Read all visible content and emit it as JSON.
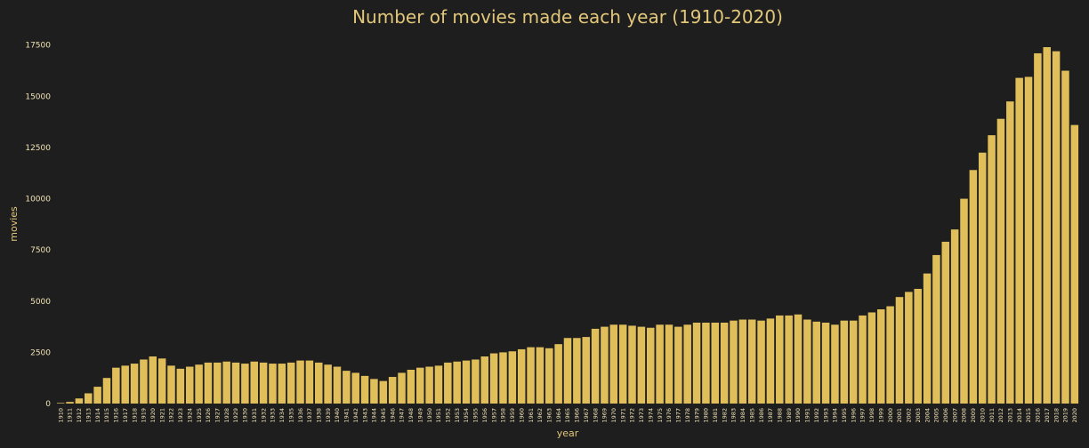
{
  "colors": {
    "background": "#1e1e1e",
    "bar": "#e0bf5b",
    "text": "#e2c77a",
    "tick_text": "#f0e2b4"
  },
  "chart_data": {
    "type": "bar",
    "title": "Number of movies made each year (1910-2020)",
    "xlabel": "year",
    "ylabel": "movies",
    "ylim": [
      0,
      18400
    ],
    "yticks": [
      0,
      2500,
      5000,
      7500,
      10000,
      12500,
      15000,
      17500
    ],
    "grid": false,
    "categories": [
      "1910",
      "1911",
      "1912",
      "1913",
      "1914",
      "1915",
      "1916",
      "1917",
      "1918",
      "1919",
      "1920",
      "1921",
      "1922",
      "1923",
      "1924",
      "1925",
      "1926",
      "1927",
      "1928",
      "1929",
      "1930",
      "1931",
      "1932",
      "1933",
      "1934",
      "1935",
      "1936",
      "1937",
      "1938",
      "1939",
      "1940",
      "1941",
      "1942",
      "1943",
      "1944",
      "1945",
      "1946",
      "1947",
      "1948",
      "1949",
      "1950",
      "1951",
      "1952",
      "1953",
      "1954",
      "1955",
      "1956",
      "1957",
      "1958",
      "1959",
      "1960",
      "1961",
      "1962",
      "1963",
      "1964",
      "1965",
      "1966",
      "1967",
      "1968",
      "1969",
      "1970",
      "1971",
      "1972",
      "1973",
      "1974",
      "1975",
      "1976",
      "1977",
      "1978",
      "1979",
      "1980",
      "1981",
      "1982",
      "1983",
      "1984",
      "1985",
      "1986",
      "1987",
      "1988",
      "1989",
      "1990",
      "1991",
      "1992",
      "1993",
      "1994",
      "1995",
      "1996",
      "1997",
      "1998",
      "1999",
      "2000",
      "2001",
      "2002",
      "2003",
      "2004",
      "2005",
      "2006",
      "2007",
      "2008",
      "2009",
      "2010",
      "2011",
      "2012",
      "2013",
      "2014",
      "2015",
      "2016",
      "2017",
      "2018",
      "2019",
      "2020"
    ],
    "values": [
      30,
      80,
      250,
      500,
      820,
      1250,
      1750,
      1850,
      1950,
      2150,
      2300,
      2200,
      1850,
      1700,
      1800,
      1900,
      2000,
      2000,
      2050,
      2000,
      1950,
      2050,
      2000,
      1950,
      1950,
      2000,
      2100,
      2100,
      2000,
      1900,
      1800,
      1600,
      1500,
      1350,
      1200,
      1100,
      1300,
      1500,
      1650,
      1750,
      1800,
      1850,
      2000,
      2050,
      2100,
      2150,
      2300,
      2450,
      2500,
      2550,
      2650,
      2750,
      2750,
      2700,
      2900,
      3200,
      3200,
      3250,
      3650,
      3750,
      3850,
      3850,
      3800,
      3750,
      3700,
      3850,
      3850,
      3750,
      3850,
      3950,
      3950,
      3950,
      3950,
      4050,
      4100,
      4100,
      4050,
      4150,
      4300,
      4300,
      4350,
      4100,
      4000,
      3950,
      3850,
      4050,
      4050,
      4300,
      4450,
      4600,
      4750,
      5200,
      5450,
      5600,
      6350,
      7250,
      7900,
      8500,
      10000,
      11400,
      12250,
      13100,
      13900,
      14750,
      15900,
      15950,
      17100,
      17400,
      17200,
      16250,
      13600
    ]
  }
}
